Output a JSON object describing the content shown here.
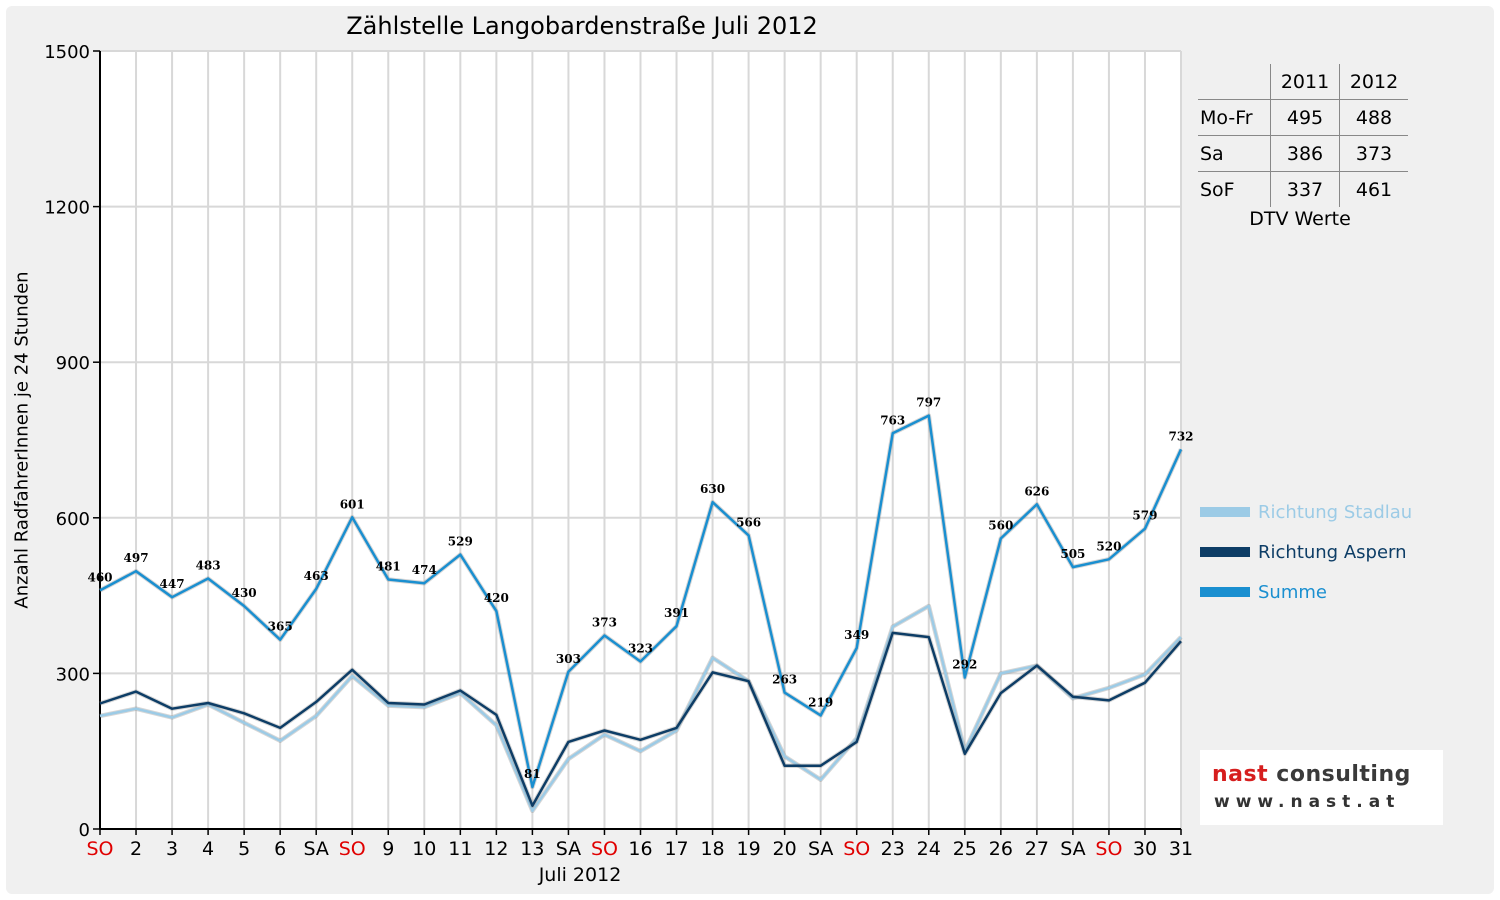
{
  "chart_data": {
    "type": "line",
    "title": "Zählstelle Langobardenstraße Juli 2012",
    "xlabel": "Juli 2012",
    "ylabel": "Anzahl RadfahrerInnen je 24 Stunden",
    "ylim": [
      0,
      1500
    ],
    "yticks": [
      0,
      300,
      600,
      900,
      1200,
      1500
    ],
    "grid": true,
    "legend_position": "right",
    "categories": [
      "SO",
      "2",
      "3",
      "4",
      "5",
      "6",
      "SA",
      "SO",
      "9",
      "10",
      "11",
      "12",
      "13",
      "SA",
      "SO",
      "16",
      "17",
      "18",
      "19",
      "20",
      "SA",
      "SO",
      "23",
      "24",
      "25",
      "26",
      "27",
      "SA",
      "SO",
      "30",
      "31"
    ],
    "highlight_color": "#e00000",
    "series": [
      {
        "name": "Richtung Stadlau",
        "color": "#9ccbe6",
        "labeled": false,
        "values": [
          218,
          232,
          215,
          240,
          205,
          170,
          218,
          295,
          238,
          235,
          262,
          200,
          35,
          135,
          182,
          150,
          190,
          330,
          285,
          140,
          95,
          175,
          390,
          430,
          150,
          300,
          315,
          252,
          272,
          298,
          370
        ]
      },
      {
        "name": "Richtung Aspern",
        "color": "#0d3d66",
        "labeled": false,
        "values": [
          242,
          265,
          232,
          243,
          223,
          195,
          245,
          307,
          243,
          240,
          267,
          220,
          45,
          168,
          190,
          172,
          195,
          302,
          285,
          122,
          122,
          168,
          378,
          370,
          145,
          262,
          315,
          255,
          248,
          282,
          362
        ]
      },
      {
        "name": "Summe",
        "color": "#1a8fd0",
        "labeled": true,
        "values": [
          460,
          497,
          447,
          483,
          430,
          365,
          463,
          601,
          481,
          474,
          529,
          420,
          81,
          303,
          373,
          323,
          391,
          630,
          566,
          263,
          219,
          349,
          763,
          797,
          292,
          560,
          626,
          505,
          520,
          579,
          732
        ]
      }
    ]
  },
  "dtv_table": {
    "headers": [
      "",
      "2011",
      "2012"
    ],
    "rows": [
      {
        "label": "Mo-Fr",
        "v2011": "495",
        "v2012": "488"
      },
      {
        "label": "Sa",
        "v2011": "386",
        "v2012": "373"
      },
      {
        "label": "SoF",
        "v2011": "337",
        "v2012": "461"
      }
    ],
    "caption": "DTV Werte"
  },
  "logo": {
    "name_part1": "nast",
    "name_part2": " consulting",
    "url": "www.nast.at"
  }
}
